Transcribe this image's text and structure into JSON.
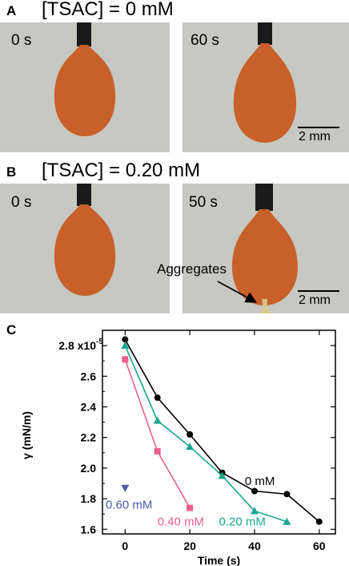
{
  "panels": {
    "a": {
      "letter": "A",
      "title": "[TSAC] = 0 mM",
      "left_time": "0 s",
      "right_time": "60 s",
      "scale": "2 mm"
    },
    "b": {
      "letter": "B",
      "title": "[TSAC] = 0.20 mM",
      "left_time": "0 s",
      "right_time": "50 s",
      "scale": "2 mm",
      "annotation": "Aggregates"
    },
    "c": {
      "letter": "C"
    }
  },
  "colors": {
    "background_photo": "#c6c8c1",
    "droplet": "#c8602a",
    "needle": "#1a1a1a",
    "series_0mM": "#000000",
    "series_020mM": "#1aa68a",
    "series_040mM": "#ec5f8c",
    "series_060mM": "#4a5aa6"
  },
  "chart_data": {
    "type": "line",
    "xlabel": "Time (s)",
    "ylabel": "γ (mN/m)",
    "xlim": [
      -7,
      65
    ],
    "ylim": [
      1.57,
      2.9
    ],
    "xticks": [
      0,
      20,
      40,
      60
    ],
    "yticks": [
      1.6,
      1.8,
      2.0,
      2.2,
      2.4,
      2.6,
      2.8
    ],
    "ytick_labels": [
      "1.6",
      "1.8",
      "2.0",
      "2.2",
      "2.4",
      "2.6",
      "2.8 x10"
    ],
    "ytick_top_exponent": "-5",
    "series": [
      {
        "name": "0 mM",
        "color": "#000000",
        "marker": "circle",
        "x": [
          0,
          10,
          20,
          30,
          40,
          50,
          60
        ],
        "y": [
          2.84,
          2.46,
          2.22,
          1.97,
          1.85,
          1.83,
          1.65
        ]
      },
      {
        "name": "0.20 mM",
        "color": "#1aa68a",
        "marker": "triangle",
        "x": [
          0,
          10,
          20,
          30,
          40,
          50
        ],
        "y": [
          2.8,
          2.31,
          2.14,
          1.95,
          1.72,
          1.65
        ]
      },
      {
        "name": "0.40 mM",
        "color": "#ec5f8c",
        "marker": "square",
        "x": [
          0,
          10,
          20
        ],
        "y": [
          2.71,
          2.11,
          1.74
        ]
      },
      {
        "name": "0.60 mM",
        "color": "#4a5aa6",
        "marker": "triangle-down",
        "x": [
          0
        ],
        "y": [
          1.87
        ]
      }
    ]
  }
}
